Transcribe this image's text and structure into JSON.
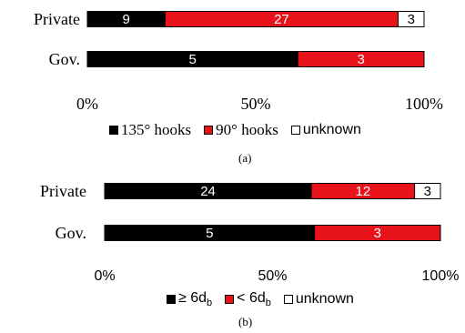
{
  "chart_data": [
    {
      "type": "bar",
      "stacked": true,
      "percent_stacked": true,
      "orientation": "horizontal",
      "categories": [
        "Private",
        "Gov."
      ],
      "series": [
        {
          "name": "135° hooks",
          "values": [
            9,
            5
          ],
          "color": "#000000",
          "label_color": "#ffffff"
        },
        {
          "name": "90° hooks",
          "values": [
            27,
            3
          ],
          "color": "#e8121b",
          "label_color": "#ffffff"
        },
        {
          "name": "unknown",
          "values": [
            3,
            0
          ],
          "color": "#ffffff",
          "label_color": "#000000"
        }
      ],
      "x_ticks": [
        "0%",
        "50%",
        "100%"
      ],
      "xlim": [
        0,
        100
      ],
      "grid": false,
      "legend_position": "bottom",
      "caption": "(a)"
    },
    {
      "type": "bar",
      "stacked": true,
      "percent_stacked": true,
      "orientation": "horizontal",
      "categories": [
        "Private",
        "Gov."
      ],
      "series": [
        {
          "name": "≥ 6d",
          "subscript": "b",
          "values": [
            24,
            5
          ],
          "color": "#000000",
          "label_color": "#ffffff"
        },
        {
          "name": "< 6d",
          "subscript": "b",
          "values": [
            12,
            3
          ],
          "color": "#e8121b",
          "label_color": "#ffffff"
        },
        {
          "name": "unknown",
          "values": [
            3,
            0
          ],
          "color": "#ffffff",
          "label_color": "#000000"
        }
      ],
      "x_ticks": [
        "0%",
        "50%",
        "100%"
      ],
      "xlim": [
        0,
        100
      ],
      "grid": false,
      "legend_position": "bottom",
      "caption": "(b)"
    }
  ]
}
